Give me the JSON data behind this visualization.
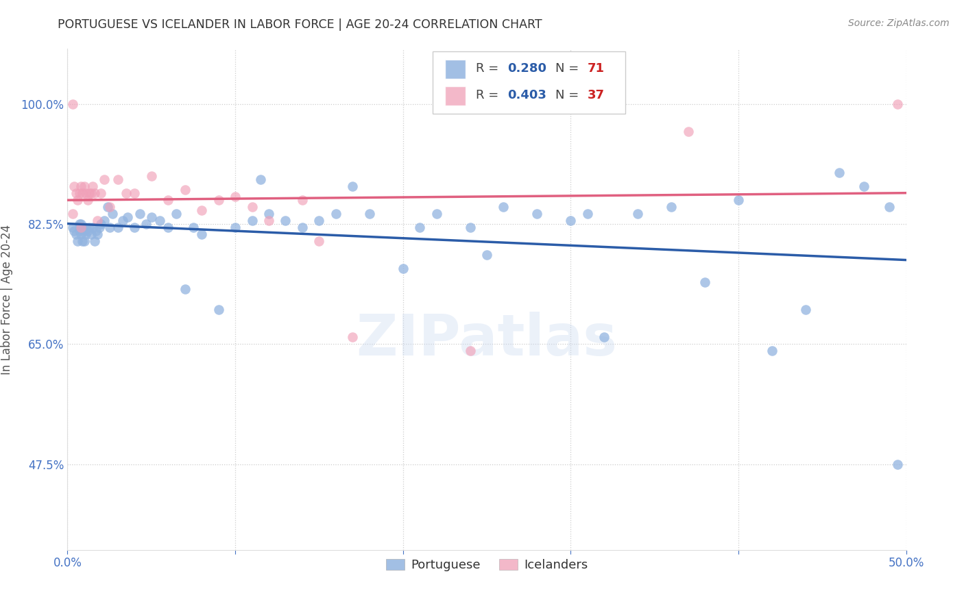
{
  "title": "PORTUGUESE VS ICELANDER IN LABOR FORCE | AGE 20-24 CORRELATION CHART",
  "source": "Source: ZipAtlas.com",
  "xlabel": "",
  "ylabel": "In Labor Force | Age 20-24",
  "xlim": [
    0.0,
    0.5
  ],
  "ylim": [
    0.35,
    1.08
  ],
  "xtick_positions": [
    0.0,
    0.1,
    0.2,
    0.3,
    0.4,
    0.5
  ],
  "xticklabels": [
    "0.0%",
    "",
    "",
    "",
    "",
    "50.0%"
  ],
  "ytick_positions": [
    0.475,
    0.65,
    0.825,
    1.0
  ],
  "yticklabels": [
    "47.5%",
    "65.0%",
    "82.5%",
    "100.0%"
  ],
  "blue_R": 0.28,
  "blue_N": 71,
  "pink_R": 0.403,
  "pink_N": 37,
  "blue_color": "#92b4e0",
  "pink_color": "#f0a0b8",
  "blue_line_color": "#2b5ca8",
  "pink_line_color": "#e06080",
  "background_color": "#ffffff",
  "watermark": "ZIPatlas",
  "blue_x": [
    0.003,
    0.004,
    0.005,
    0.006,
    0.007,
    0.007,
    0.008,
    0.008,
    0.009,
    0.009,
    0.01,
    0.01,
    0.011,
    0.011,
    0.012,
    0.013,
    0.014,
    0.015,
    0.016,
    0.017,
    0.018,
    0.019,
    0.02,
    0.022,
    0.024,
    0.025,
    0.027,
    0.03,
    0.033,
    0.036,
    0.04,
    0.043,
    0.047,
    0.05,
    0.055,
    0.06,
    0.065,
    0.07,
    0.075,
    0.08,
    0.09,
    0.1,
    0.11,
    0.115,
    0.12,
    0.13,
    0.14,
    0.15,
    0.16,
    0.17,
    0.18,
    0.2,
    0.21,
    0.22,
    0.24,
    0.25,
    0.26,
    0.28,
    0.3,
    0.31,
    0.32,
    0.34,
    0.36,
    0.38,
    0.4,
    0.42,
    0.44,
    0.46,
    0.475,
    0.49,
    0.495
  ],
  "blue_y": [
    0.82,
    0.815,
    0.81,
    0.8,
    0.815,
    0.825,
    0.81,
    0.825,
    0.8,
    0.82,
    0.8,
    0.815,
    0.81,
    0.82,
    0.815,
    0.82,
    0.81,
    0.82,
    0.8,
    0.815,
    0.81,
    0.82,
    0.825,
    0.83,
    0.85,
    0.82,
    0.84,
    0.82,
    0.83,
    0.835,
    0.82,
    0.84,
    0.825,
    0.835,
    0.83,
    0.82,
    0.84,
    0.73,
    0.82,
    0.81,
    0.7,
    0.82,
    0.83,
    0.89,
    0.84,
    0.83,
    0.82,
    0.83,
    0.84,
    0.88,
    0.84,
    0.76,
    0.82,
    0.84,
    0.82,
    0.78,
    0.85,
    0.84,
    0.83,
    0.84,
    0.66,
    0.84,
    0.85,
    0.74,
    0.86,
    0.64,
    0.7,
    0.9,
    0.88,
    0.85,
    0.475
  ],
  "pink_x": [
    0.003,
    0.004,
    0.005,
    0.006,
    0.007,
    0.008,
    0.009,
    0.01,
    0.011,
    0.012,
    0.013,
    0.014,
    0.015,
    0.016,
    0.018,
    0.02,
    0.022,
    0.025,
    0.03,
    0.035,
    0.04,
    0.05,
    0.06,
    0.07,
    0.08,
    0.09,
    0.1,
    0.11,
    0.12,
    0.14,
    0.15,
    0.17,
    0.24,
    0.37,
    0.495,
    0.003,
    0.008
  ],
  "pink_y": [
    1.0,
    0.88,
    0.87,
    0.86,
    0.87,
    0.88,
    0.87,
    0.88,
    0.87,
    0.86,
    0.87,
    0.87,
    0.88,
    0.87,
    0.83,
    0.87,
    0.89,
    0.85,
    0.89,
    0.87,
    0.87,
    0.895,
    0.86,
    0.875,
    0.845,
    0.86,
    0.865,
    0.85,
    0.83,
    0.86,
    0.8,
    0.66,
    0.64,
    0.96,
    1.0,
    0.84,
    0.82
  ],
  "legend_items": [
    {
      "label": "Portuguese",
      "color": "#92b4e0"
    },
    {
      "label": "Icelanders",
      "color": "#f0a0b8"
    }
  ]
}
